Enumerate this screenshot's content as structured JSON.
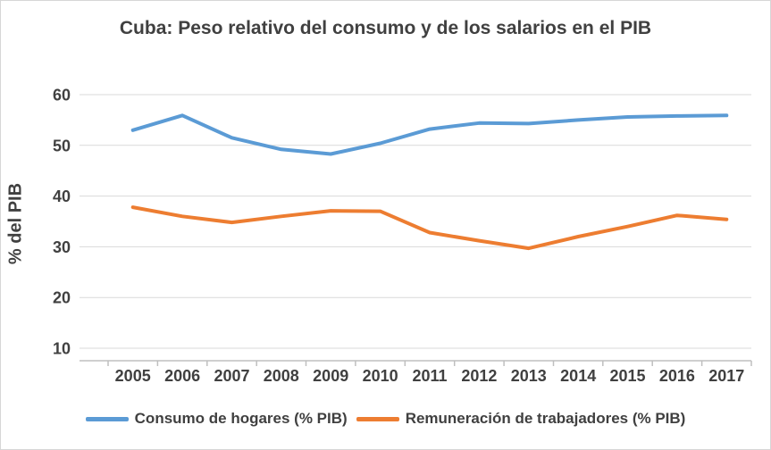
{
  "chart": {
    "title": "Cuba: Peso relativo del consumo y de los salarios en el PIB",
    "ylabel": "% del PIB"
  },
  "chart_data": {
    "type": "line",
    "title": "Cuba: Peso relativo del consumo y de los salarios en el PIB",
    "xlabel": "",
    "ylabel": "% del PIB",
    "categories": [
      "2005",
      "2006",
      "2007",
      "2008",
      "2009",
      "2010",
      "2011",
      "2012",
      "2013",
      "2014",
      "2015",
      "2016",
      "2017"
    ],
    "series": [
      {
        "name": "Consumo de hogares (% PIB)",
        "color": "#5B9BD5",
        "values": [
          53.0,
          55.9,
          51.5,
          49.2,
          48.3,
          50.4,
          53.2,
          54.4,
          54.3,
          55.0,
          55.6,
          55.8,
          55.9
        ]
      },
      {
        "name": "Remuneración de trabajadores (% PIB)",
        "color": "#ED7D31",
        "values": [
          37.8,
          36.0,
          34.8,
          36.0,
          37.1,
          37.0,
          32.8,
          31.2,
          29.7,
          32.0,
          34.0,
          36.2,
          35.4
        ]
      }
    ],
    "yticks": [
      60,
      50,
      40,
      30,
      20,
      10
    ],
    "ylim": [
      10,
      60
    ],
    "grid": true,
    "legend_position": "bottom"
  },
  "style": {
    "text_color": "#404040",
    "grid_color": "#d9d9d9",
    "axis_color": "#bfbfbf",
    "background": "#ffffff",
    "border_color": "#d6d6d6"
  }
}
